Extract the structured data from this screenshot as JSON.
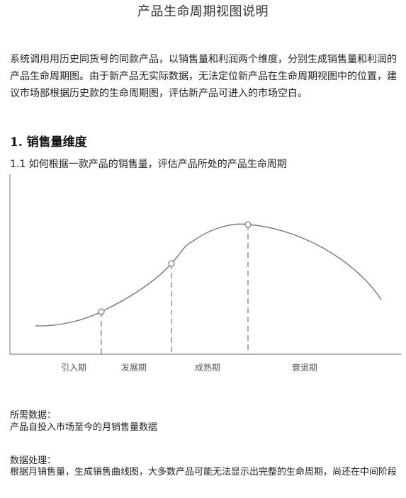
{
  "doc": {
    "title": "产品生命周期视图说明",
    "intro": "系统调用用历史同货号的同款产品，以销售量和利润两个维度，分别生成销售量和利润的产品生命周期图。由于新产品无实际数据，无法定位新产品在生命周期视图中的位置，建议市场部根据历史款的生命周期图，评估新产品可进入的市场空白。",
    "section1": {
      "heading": "1. 销售量维度",
      "sub_heading": "1.1  如何根据一款产品的销售量，评估产品所处的产品生命周期"
    },
    "figure": {
      "stages": [
        "引入期",
        "发展期",
        "成熟期",
        "衰退期"
      ]
    },
    "required_data": {
      "label": "所需数据：",
      "text": "产品自投入市场至今的月销售量数据"
    },
    "processing": {
      "label": "数据处理：",
      "text": "根据月销售量，生成销售曲线图，大多数产品可能无法显示出完整的生命周期，尚还在中间阶段"
    }
  },
  "colors": {
    "curve": "#777777",
    "axis": "#888888",
    "dashed": "#777777",
    "stage_label": "#555555"
  }
}
